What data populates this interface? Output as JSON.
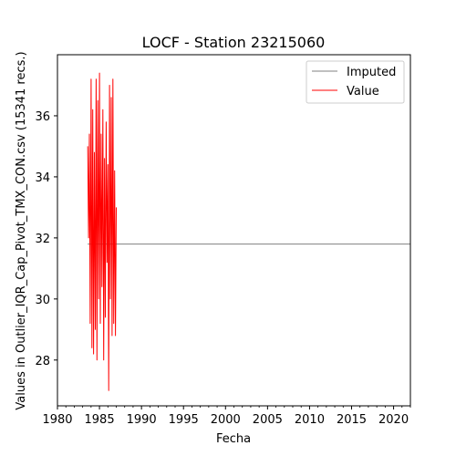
{
  "chart_data": {
    "type": "line",
    "title": "LOCF - Station 23215060",
    "xlabel": "Fecha",
    "ylabel": "Values in Outlier_IQR_Cap_Pivot_TMX_CON.csv (15341 recs.)",
    "xlim": [
      1980,
      2022
    ],
    "ylim": [
      26.5,
      38.0
    ],
    "x_ticks": [
      "1980",
      "1985",
      "1990",
      "1995",
      "2000",
      "2005",
      "2010",
      "2015",
      "2020"
    ],
    "x_tick_values": [
      1980,
      1985,
      1990,
      1995,
      2000,
      2005,
      2010,
      2015,
      2020
    ],
    "y_ticks": [
      "28",
      "30",
      "32",
      "34",
      "36"
    ],
    "y_tick_values": [
      28,
      30,
      32,
      34,
      36
    ],
    "grid": false,
    "legend_position": "top-right",
    "series": [
      {
        "name": "Imputed",
        "color": "#808080",
        "x": [
          1983.6,
          1987.0,
          2022.0
        ],
        "y": [
          31.8,
          31.8,
          31.8
        ]
      },
      {
        "name": "Value",
        "color": "#ff0000",
        "x": [
          1983.6,
          1983.7,
          1983.8,
          1983.9,
          1984.0,
          1984.1,
          1984.2,
          1984.3,
          1984.4,
          1984.5,
          1984.6,
          1984.7,
          1984.8,
          1984.9,
          1985.0,
          1985.1,
          1985.2,
          1985.3,
          1985.4,
          1985.5,
          1985.6,
          1985.7,
          1985.8,
          1985.9,
          1986.0,
          1986.1,
          1986.2,
          1986.3,
          1986.4,
          1986.5,
          1986.6,
          1986.7,
          1986.8,
          1986.9,
          1987.0
        ],
        "y": [
          35.0,
          32.0,
          35.4,
          29.2,
          37.2,
          28.4,
          36.2,
          28.2,
          34.8,
          29.0,
          37.2,
          28.0,
          36.5,
          30.0,
          37.4,
          29.2,
          35.4,
          30.4,
          36.2,
          28.0,
          34.6,
          29.4,
          35.8,
          31.2,
          34.4,
          27.0,
          37.0,
          30.0,
          36.6,
          28.8,
          37.2,
          29.2,
          34.2,
          28.8,
          33.0
        ]
      }
    ]
  }
}
